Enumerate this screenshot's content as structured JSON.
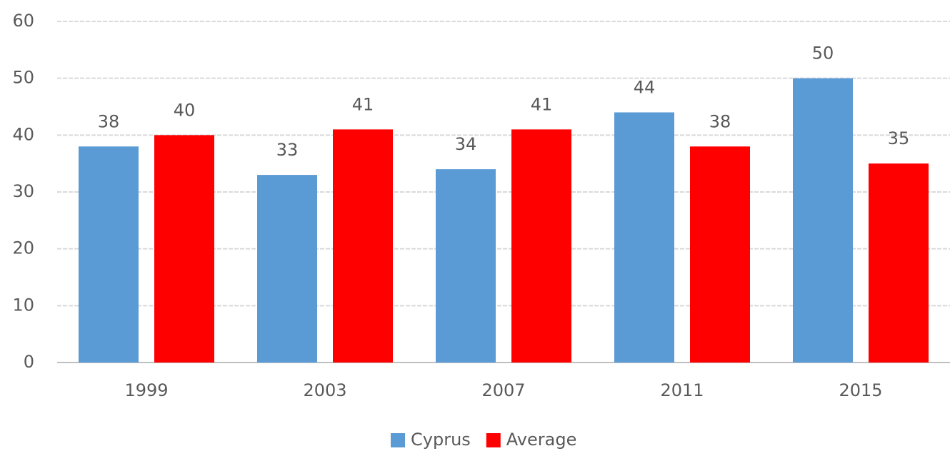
{
  "chart_data": {
    "type": "bar",
    "categories": [
      "1999",
      "2003",
      "2007",
      "2011",
      "2015"
    ],
    "series": [
      {
        "name": "Cyprus",
        "color": "#5b9bd5",
        "values": [
          38,
          33,
          34,
          44,
          50
        ]
      },
      {
        "name": "Average",
        "color": "#ff0000",
        "values": [
          40,
          41,
          41,
          38,
          35
        ]
      }
    ],
    "ylim": [
      0,
      60
    ],
    "yticks": [
      0,
      10,
      20,
      30,
      40,
      50,
      60
    ],
    "grid": true,
    "legend": "bottom"
  }
}
